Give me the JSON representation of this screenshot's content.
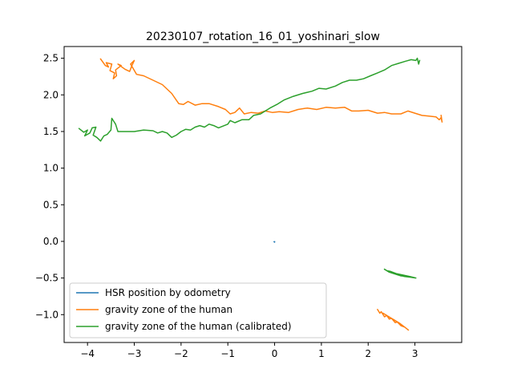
{
  "chart_data": {
    "type": "line",
    "title": "20230107_rotation_16_01_yoshinari_slow",
    "xlabel": "",
    "ylabel": "",
    "xlim": [
      -4.5,
      4.0
    ],
    "ylim": [
      -1.38,
      2.66
    ],
    "xticks": [
      -4,
      -3,
      -2,
      -1,
      0,
      1,
      2,
      3
    ],
    "yticks": [
      -1.0,
      -0.5,
      0.0,
      0.5,
      1.0,
      1.5,
      2.0,
      2.5
    ],
    "xtick_labels": [
      "−4",
      "−3",
      "−2",
      "−1",
      "0",
      "1",
      "2",
      "3"
    ],
    "ytick_labels": [
      "−1.0",
      "−0.5",
      "0.0",
      "0.5",
      "1.0",
      "1.5",
      "2.0",
      "2.5"
    ],
    "legend_position": "lower-left",
    "series": [
      {
        "name": "HSR position by odometry",
        "color": "#1f77b4",
        "segments": [
          [
            [
              -0.01,
              -0.005
            ],
            [
              0.0,
              -0.01
            ],
            [
              0.0,
              -0.005
            ]
          ]
        ]
      },
      {
        "name": "gravity zone of the human",
        "color": "#ff7f0e",
        "segments": [
          [
            [
              -3.72,
              2.49
            ],
            [
              -3.62,
              2.4
            ],
            [
              -3.55,
              2.38
            ],
            [
              -3.6,
              2.44
            ],
            [
              -3.48,
              2.42
            ],
            [
              -3.52,
              2.33
            ],
            [
              -3.42,
              2.3
            ],
            [
              -3.45,
              2.22
            ],
            [
              -3.38,
              2.26
            ],
            [
              -3.4,
              2.34
            ],
            [
              -3.28,
              2.4
            ],
            [
              -3.35,
              2.42
            ],
            [
              -3.2,
              2.35
            ],
            [
              -3.1,
              2.32
            ],
            [
              -3.05,
              2.4
            ],
            [
              -3.0,
              2.47
            ],
            [
              -3.08,
              2.42
            ],
            [
              -2.95,
              2.28
            ],
            [
              -2.8,
              2.26
            ],
            [
              -2.6,
              2.2
            ],
            [
              -2.4,
              2.14
            ],
            [
              -2.2,
              2.02
            ],
            [
              -2.05,
              1.88
            ],
            [
              -1.95,
              1.87
            ],
            [
              -1.85,
              1.91
            ],
            [
              -1.7,
              1.86
            ],
            [
              -1.55,
              1.88
            ],
            [
              -1.4,
              1.88
            ],
            [
              -1.2,
              1.84
            ],
            [
              -1.05,
              1.8
            ],
            [
              -0.95,
              1.74
            ],
            [
              -0.85,
              1.76
            ],
            [
              -0.75,
              1.82
            ],
            [
              -0.65,
              1.74
            ],
            [
              -0.5,
              1.76
            ],
            [
              -0.35,
              1.75
            ],
            [
              -0.2,
              1.78
            ],
            [
              -0.05,
              1.76
            ],
            [
              0.1,
              1.77
            ],
            [
              0.3,
              1.76
            ],
            [
              0.5,
              1.8
            ],
            [
              0.7,
              1.82
            ],
            [
              0.9,
              1.8
            ],
            [
              1.1,
              1.83
            ],
            [
              1.3,
              1.82
            ],
            [
              1.5,
              1.83
            ],
            [
              1.65,
              1.78
            ],
            [
              1.8,
              1.78
            ],
            [
              2.0,
              1.79
            ],
            [
              2.2,
              1.75
            ],
            [
              2.35,
              1.76
            ],
            [
              2.5,
              1.74
            ],
            [
              2.7,
              1.74
            ],
            [
              2.85,
              1.78
            ],
            [
              3.0,
              1.75
            ],
            [
              3.15,
              1.72
            ],
            [
              3.3,
              1.71
            ],
            [
              3.45,
              1.7
            ],
            [
              3.52,
              1.66
            ],
            [
              3.56,
              1.69
            ],
            [
              3.58,
              1.63
            ],
            [
              3.56,
              1.72
            ]
          ],
          [
            [
              2.2,
              -0.93
            ],
            [
              2.25,
              -0.98
            ],
            [
              2.28,
              -0.96
            ],
            [
              2.35,
              -1.03
            ],
            [
              2.4,
              -1.01
            ],
            [
              2.45,
              -1.06
            ],
            [
              2.5,
              -1.05
            ],
            [
              2.58,
              -1.11
            ],
            [
              2.62,
              -1.1
            ],
            [
              2.7,
              -1.15
            ],
            [
              2.78,
              -1.17
            ],
            [
              2.86,
              -1.21
            ],
            [
              2.8,
              -1.18
            ],
            [
              2.68,
              -1.12
            ],
            [
              2.55,
              -1.07
            ],
            [
              2.42,
              -1.02
            ],
            [
              2.32,
              -0.98
            ]
          ]
        ]
      },
      {
        "name": "gravity zone of the human (calibrated)",
        "color": "#2ca02c",
        "segments": [
          [
            [
              -4.18,
              1.54
            ],
            [
              -4.08,
              1.49
            ],
            [
              -4.0,
              1.52
            ],
            [
              -4.06,
              1.44
            ],
            [
              -3.95,
              1.48
            ],
            [
              -3.9,
              1.55
            ],
            [
              -3.82,
              1.56
            ],
            [
              -3.88,
              1.45
            ],
            [
              -3.8,
              1.42
            ],
            [
              -3.72,
              1.37
            ],
            [
              -3.65,
              1.44
            ],
            [
              -3.58,
              1.46
            ],
            [
              -3.5,
              1.52
            ],
            [
              -3.48,
              1.68
            ],
            [
              -3.4,
              1.6
            ],
            [
              -3.35,
              1.5
            ],
            [
              -3.15,
              1.5
            ],
            [
              -3.0,
              1.5
            ],
            [
              -2.8,
              1.52
            ],
            [
              -2.6,
              1.51
            ],
            [
              -2.5,
              1.48
            ],
            [
              -2.4,
              1.5
            ],
            [
              -2.3,
              1.48
            ],
            [
              -2.2,
              1.42
            ],
            [
              -2.1,
              1.45
            ],
            [
              -2.0,
              1.5
            ],
            [
              -1.9,
              1.53
            ],
            [
              -1.8,
              1.52
            ],
            [
              -1.7,
              1.56
            ],
            [
              -1.6,
              1.58
            ],
            [
              -1.5,
              1.56
            ],
            [
              -1.4,
              1.6
            ],
            [
              -1.3,
              1.58
            ],
            [
              -1.2,
              1.55
            ],
            [
              -1.0,
              1.6
            ],
            [
              -0.95,
              1.65
            ],
            [
              -0.85,
              1.62
            ],
            [
              -0.7,
              1.66
            ],
            [
              -0.55,
              1.66
            ],
            [
              -0.45,
              1.72
            ],
            [
              -0.3,
              1.74
            ],
            [
              -0.2,
              1.78
            ],
            [
              -0.1,
              1.82
            ],
            [
              0.05,
              1.87
            ],
            [
              0.2,
              1.93
            ],
            [
              0.4,
              1.98
            ],
            [
              0.6,
              2.02
            ],
            [
              0.8,
              2.05
            ],
            [
              0.95,
              2.09
            ],
            [
              1.1,
              2.08
            ],
            [
              1.3,
              2.12
            ],
            [
              1.45,
              2.17
            ],
            [
              1.6,
              2.2
            ],
            [
              1.75,
              2.2
            ],
            [
              1.9,
              2.22
            ],
            [
              2.05,
              2.26
            ],
            [
              2.2,
              2.3
            ],
            [
              2.35,
              2.34
            ],
            [
              2.5,
              2.4
            ],
            [
              2.65,
              2.43
            ],
            [
              2.8,
              2.46
            ],
            [
              2.92,
              2.48
            ],
            [
              3.02,
              2.47
            ],
            [
              3.05,
              2.5
            ],
            [
              3.08,
              2.42
            ],
            [
              3.1,
              2.47
            ]
          ],
          [
            [
              2.35,
              -0.38
            ],
            [
              2.45,
              -0.42
            ],
            [
              2.55,
              -0.44
            ],
            [
              2.65,
              -0.46
            ],
            [
              2.78,
              -0.48
            ],
            [
              2.92,
              -0.49
            ],
            [
              3.02,
              -0.5
            ],
            [
              2.9,
              -0.48
            ],
            [
              2.75,
              -0.46
            ],
            [
              2.6,
              -0.44
            ],
            [
              2.48,
              -0.41
            ],
            [
              2.4,
              -0.4
            ],
            [
              2.5,
              -0.43
            ],
            [
              2.7,
              -0.47
            ]
          ]
        ]
      }
    ]
  }
}
